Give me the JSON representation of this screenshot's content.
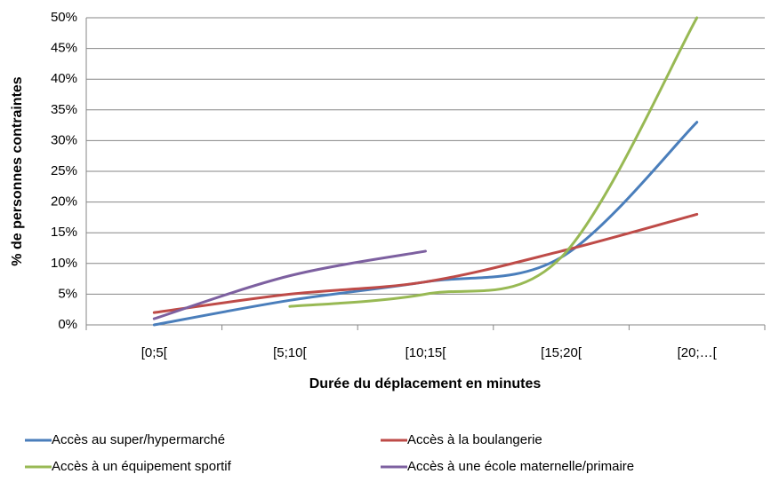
{
  "chart_data": {
    "type": "line",
    "x_label": "Durée du déplacement en minutes",
    "y_label": "% de personnes contraintes",
    "categories": [
      "[0;5[",
      "[5;10[",
      "[10;15[",
      "[15;20[",
      "[20;…["
    ],
    "series": [
      {
        "name": "Accès au super/hypermarché",
        "color": "#4a7ebb",
        "values": [
          0,
          4,
          7,
          11,
          33
        ]
      },
      {
        "name": "Accès à la boulangerie",
        "color": "#be4b48",
        "values": [
          2,
          5,
          7,
          12,
          18
        ]
      },
      {
        "name": "Accès à un équipement sportif",
        "color": "#98b954",
        "values": [
          null,
          3,
          5,
          11,
          50
        ]
      },
      {
        "name": "Accès à une école maternelle/primaire",
        "color": "#7d60a0",
        "values": [
          1,
          8,
          12,
          null,
          null
        ]
      }
    ],
    "ylim": [
      0,
      50
    ],
    "yticks": [
      {
        "value": 0,
        "label": "0%"
      },
      {
        "value": 5,
        "label": "5%"
      },
      {
        "value": 10,
        "label": "10%"
      },
      {
        "value": 15,
        "label": "15%"
      },
      {
        "value": 20,
        "label": "20%"
      },
      {
        "value": 25,
        "label": "25%"
      },
      {
        "value": 30,
        "label": "30%"
      },
      {
        "value": 35,
        "label": "35%"
      },
      {
        "value": 40,
        "label": "40%"
      },
      {
        "value": 45,
        "label": "45%"
      },
      {
        "value": 50,
        "label": "50%"
      }
    ],
    "grid": true,
    "smooth": true,
    "legend": "bottom"
  }
}
